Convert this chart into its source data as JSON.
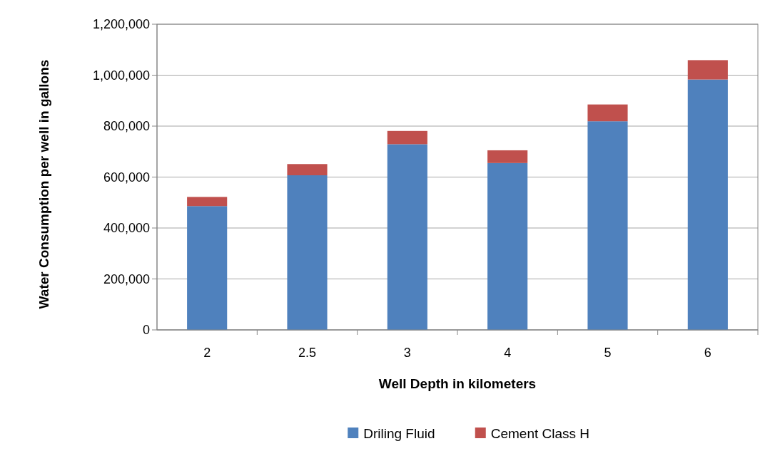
{
  "chart_data": {
    "type": "bar",
    "stacked": true,
    "categories": [
      "2",
      "2.5",
      "3",
      "4",
      "5",
      "6"
    ],
    "series": [
      {
        "name": "Driling Fluid",
        "color": "#4f81bd",
        "values": [
          486000,
          607000,
          729000,
          655000,
          819000,
          983000
        ]
      },
      {
        "name": "Cement Class H",
        "color": "#c0504d",
        "values": [
          36000,
          44000,
          52000,
          50000,
          66000,
          76000
        ]
      }
    ],
    "xlabel": "Well Depth in kilometers",
    "ylabel": "Water Consumption per well in gallons",
    "ylim": [
      0,
      1200000
    ],
    "yticks": [
      {
        "value": 0,
        "label": "0"
      },
      {
        "value": 200000,
        "label": "200,000"
      },
      {
        "value": 400000,
        "label": "400,000"
      },
      {
        "value": 600000,
        "label": "600,000"
      },
      {
        "value": 800000,
        "label": "800,000"
      },
      {
        "value": 1000000,
        "label": "1,000,000"
      },
      {
        "value": 1200000,
        "label": "1,200,000"
      }
    ],
    "grid": "y",
    "legend": "bottom"
  }
}
